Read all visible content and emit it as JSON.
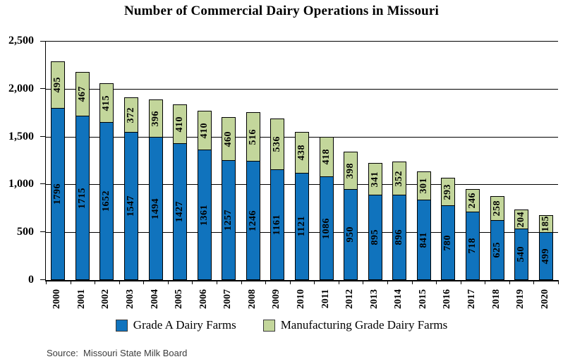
{
  "chart_data": {
    "type": "bar",
    "stacked": true,
    "title": "Number of Commercial Dairy Operations in Missouri",
    "categories": [
      "2000",
      "2001",
      "2002",
      "2003",
      "2004",
      "2005",
      "2006",
      "2007",
      "2008",
      "2009",
      "2010",
      "2011",
      "2012",
      "2013",
      "2014",
      "2015",
      "2016",
      "2017",
      "2018",
      "2019",
      "2020"
    ],
    "series": [
      {
        "name": "Grade A Dairy Farms",
        "color": "#1073BD",
        "values": [
          1796,
          1715,
          1652,
          1547,
          1494,
          1427,
          1361,
          1257,
          1246,
          1161,
          1121,
          1086,
          950,
          895,
          896,
          841,
          780,
          718,
          625,
          540,
          499
        ]
      },
      {
        "name": "Manufacturing Grade Dairy Farms",
        "color": "#C3D69B",
        "values": [
          495,
          467,
          415,
          372,
          396,
          410,
          410,
          460,
          516,
          536,
          438,
          418,
          398,
          341,
          352,
          301,
          293,
          246,
          258,
          204,
          185
        ]
      }
    ],
    "xlabel": "",
    "ylabel": "",
    "ylim": [
      0,
      2500
    ],
    "ytick_interval": 500,
    "ytick_labels": [
      "0",
      "500",
      "1,000",
      "1,500",
      "2,000",
      "2,500"
    ],
    "grid": true,
    "legend_position": "bottom",
    "data_labels": "values rotated 90° inside segments"
  },
  "source": {
    "text": "Source:  Missouri State Milk Board"
  },
  "colors": {
    "bar_border": "#000000",
    "axis": "#000000",
    "gridline": "#000000",
    "background": "#ffffff",
    "label_text": "#000000"
  }
}
